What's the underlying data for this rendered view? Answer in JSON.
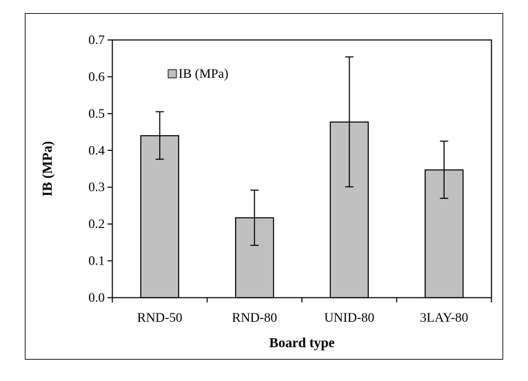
{
  "chart_data": {
    "type": "bar",
    "categories": [
      "RND-50",
      "RND-80",
      "UNID-80",
      "3LAY-80"
    ],
    "series": [
      {
        "name": "IB (MPa)",
        "values": [
          0.44,
          0.217,
          0.477,
          0.347
        ],
        "error_low": [
          0.376,
          0.142,
          0.301,
          0.27
        ],
        "error_high": [
          0.505,
          0.292,
          0.654,
          0.425
        ],
        "color": "#c0c0c0"
      }
    ],
    "title": "",
    "xlabel": "Board type",
    "ylabel": "IB (MPa)",
    "ylim": [
      0,
      0.7
    ],
    "yticks": [
      "0.0",
      "0.1",
      "0.2",
      "0.3",
      "0.4",
      "0.5",
      "0.6",
      "0.7"
    ],
    "grid": false,
    "legend": "top-left inside plot"
  }
}
